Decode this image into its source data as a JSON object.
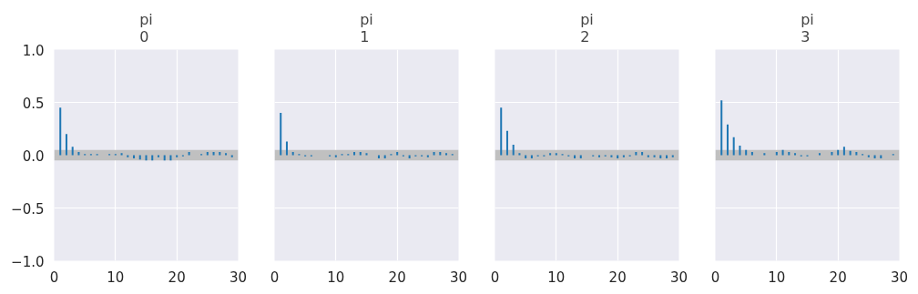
{
  "chart_data": [
    {
      "type": "bar",
      "title": "pi\n0",
      "x": [
        1,
        2,
        3,
        4,
        5,
        6,
        7,
        8,
        9,
        10,
        11,
        12,
        13,
        14,
        15,
        16,
        17,
        18,
        19,
        20,
        21,
        22,
        23,
        24,
        25,
        26,
        27,
        28,
        29
      ],
      "series": [
        {
          "color": "#1f77b4",
          "values": [
            0.45,
            0.2,
            0.08,
            0.03,
            0.01,
            0.01,
            0.01,
            0.0,
            0.01,
            0.01,
            0.02,
            -0.02,
            -0.03,
            -0.04,
            -0.05,
            -0.05,
            -0.02,
            -0.05,
            -0.05,
            -0.02,
            -0.01,
            0.03,
            0.0,
            0.01,
            0.03,
            0.03,
            0.03,
            0.02,
            -0.02
          ]
        }
      ],
      "xlim": [
        0,
        30
      ],
      "xticks": [
        0,
        10,
        20,
        30
      ],
      "ylim": [
        -1,
        1
      ],
      "yticks": [
        {
          "value": -1,
          "label": "−1.0"
        },
        {
          "value": -0.5,
          "label": "−0.5"
        },
        {
          "value": 0,
          "label": "0.0"
        },
        {
          "value": 0.5,
          "label": "0.5"
        },
        {
          "value": 1,
          "label": "1.0"
        }
      ],
      "bands": [
        {
          "axis": "y",
          "from": -0.05,
          "to": 0.05,
          "color": "#c0c0c0"
        }
      ],
      "grid": true
    },
    {
      "type": "bar",
      "title": "pi\n1",
      "x": [
        1,
        2,
        3,
        4,
        5,
        6,
        7,
        8,
        9,
        10,
        11,
        12,
        13,
        14,
        15,
        16,
        17,
        18,
        19,
        20,
        21,
        22,
        23,
        24,
        25,
        26,
        27,
        28,
        29
      ],
      "series": [
        {
          "color": "#1f77b4",
          "values": [
            0.4,
            0.13,
            0.03,
            0.01,
            -0.01,
            -0.01,
            0.0,
            0.0,
            -0.01,
            -0.02,
            0.01,
            0.01,
            0.03,
            0.03,
            0.02,
            0.0,
            -0.03,
            -0.03,
            0.01,
            0.03,
            -0.01,
            -0.03,
            -0.01,
            -0.01,
            -0.02,
            0.03,
            0.03,
            0.02,
            0.01
          ]
        }
      ],
      "xlim": [
        0,
        30
      ],
      "xticks": [
        0,
        10,
        20,
        30
      ],
      "ylim": [
        -1,
        1
      ],
      "yticks": [
        -1,
        -0.5,
        0,
        0.5,
        1
      ],
      "bands": [
        {
          "axis": "y",
          "from": -0.05,
          "to": 0.05,
          "color": "#c0c0c0"
        }
      ],
      "grid": true,
      "tick_labels": "x"
    },
    {
      "type": "bar",
      "title": "pi\n2",
      "x": [
        1,
        2,
        3,
        4,
        5,
        6,
        7,
        8,
        9,
        10,
        11,
        12,
        13,
        14,
        15,
        16,
        17,
        18,
        19,
        20,
        21,
        22,
        23,
        24,
        25,
        26,
        27,
        28,
        29
      ],
      "series": [
        {
          "color": "#1f77b4",
          "values": [
            0.45,
            0.23,
            0.1,
            0.02,
            -0.03,
            -0.03,
            -0.01,
            -0.01,
            0.02,
            0.02,
            0.01,
            -0.01,
            -0.03,
            -0.03,
            0.0,
            -0.01,
            -0.02,
            -0.01,
            -0.02,
            -0.03,
            -0.02,
            -0.01,
            0.03,
            0.03,
            -0.02,
            -0.02,
            -0.03,
            -0.03,
            -0.02
          ]
        }
      ],
      "xlim": [
        0,
        30
      ],
      "xticks": [
        0,
        10,
        20,
        30
      ],
      "ylim": [
        -1,
        1
      ],
      "yticks": [
        -1,
        -0.5,
        0,
        0.5,
        1
      ],
      "bands": [
        {
          "axis": "y",
          "from": -0.05,
          "to": 0.05,
          "color": "#c0c0c0"
        }
      ],
      "grid": true,
      "tick_labels": "x"
    },
    {
      "type": "bar",
      "title": "pi\n3",
      "x": [
        1,
        2,
        3,
        4,
        5,
        6,
        7,
        8,
        9,
        10,
        11,
        12,
        13,
        14,
        15,
        16,
        17,
        18,
        19,
        20,
        21,
        22,
        23,
        24,
        25,
        26,
        27,
        28,
        29
      ],
      "series": [
        {
          "color": "#1f77b4",
          "values": [
            0.52,
            0.29,
            0.17,
            0.09,
            0.05,
            0.03,
            0.0,
            0.02,
            0.0,
            0.03,
            0.05,
            0.03,
            0.02,
            -0.01,
            -0.01,
            0.0,
            0.02,
            0.0,
            0.03,
            0.05,
            0.08,
            0.04,
            0.03,
            0.01,
            -0.02,
            -0.03,
            -0.03,
            0.0,
            0.01
          ]
        }
      ],
      "xlim": [
        0,
        30
      ],
      "xticks": [
        0,
        10,
        20,
        30
      ],
      "ylim": [
        -1,
        1
      ],
      "yticks": [
        -1,
        -0.5,
        0,
        0.5,
        1
      ],
      "bands": [
        {
          "axis": "y",
          "from": -0.05,
          "to": 0.05,
          "color": "#c0c0c0"
        }
      ],
      "grid": true,
      "tick_labels": "x"
    }
  ]
}
